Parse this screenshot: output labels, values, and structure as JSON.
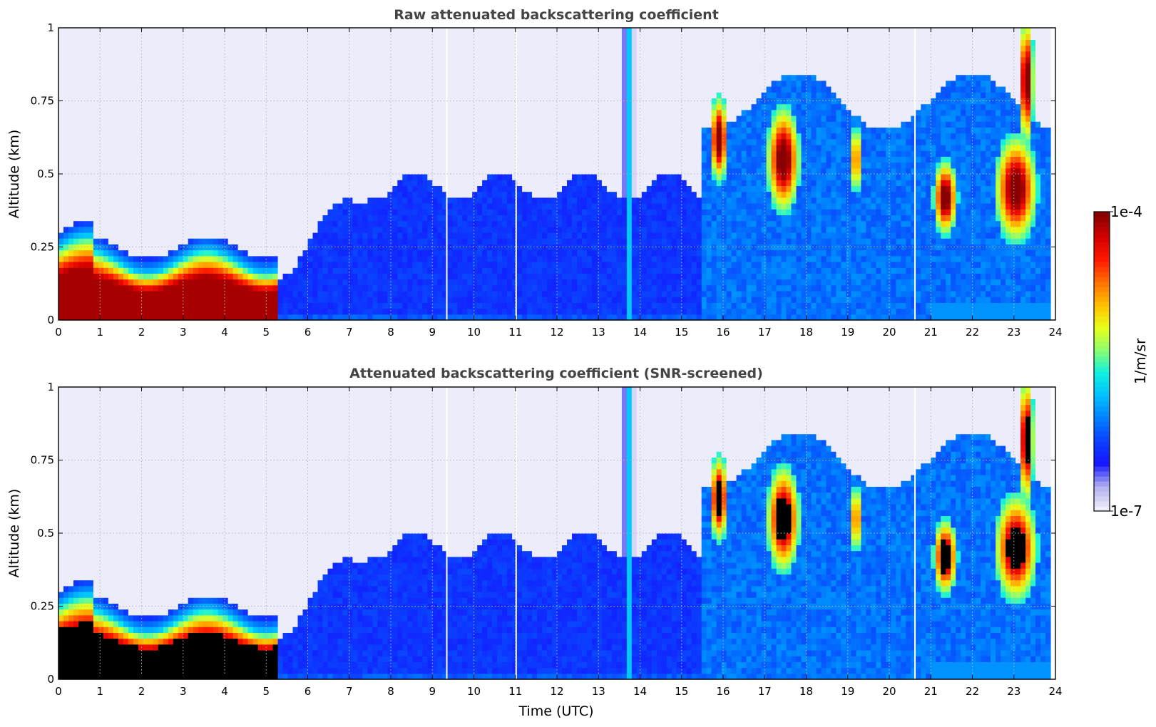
{
  "figure": {
    "time_axis_label": "Time (UTC)",
    "colorbar": {
      "label": "1/m/sr",
      "max_label": "1e-4",
      "min_label": "1e-7",
      "colors": [
        "#ececfa",
        "#b0b0f0",
        "#1515ff",
        "#0b40ff",
        "#0080ff",
        "#00c0ff",
        "#10f0e0",
        "#8cff70",
        "#e8ff18",
        "#ffc000",
        "#ff7000",
        "#ff1800",
        "#d40000",
        "#880000"
      ]
    }
  },
  "chart_data": [
    {
      "type": "heatmap",
      "title": "Raw attenuated backscattering coefficient",
      "xlabel": "",
      "ylabel": "Altitude (km)",
      "xlim": [
        0,
        24
      ],
      "ylim": [
        0,
        1
      ],
      "x_ticks": [
        "0",
        "1",
        "2",
        "3",
        "4",
        "5",
        "6",
        "7",
        "8",
        "9",
        "10",
        "11",
        "12",
        "13",
        "14",
        "15",
        "16",
        "17",
        "18",
        "19",
        "20",
        "21",
        "22",
        "23",
        "24"
      ],
      "y_ticks": [
        "0",
        "0.25",
        "0.5",
        "0.75",
        "1"
      ],
      "grid": true,
      "colormap": "jet",
      "color_scale": "log",
      "value_range": [
        "1e-7",
        "1e-4"
      ],
      "data_end_hour": 23.8
    },
    {
      "type": "heatmap",
      "title": "Attenuated backscattering coefficient (SNR-screened)",
      "xlabel": "Time (UTC)",
      "ylabel": "Altitude (km)",
      "xlim": [
        0,
        24
      ],
      "ylim": [
        0,
        1
      ],
      "x_ticks": [
        "0",
        "1",
        "2",
        "3",
        "4",
        "5",
        "6",
        "7",
        "8",
        "9",
        "10",
        "11",
        "12",
        "13",
        "14",
        "15",
        "16",
        "17",
        "18",
        "19",
        "20",
        "21",
        "22",
        "23",
        "24"
      ],
      "y_ticks": [
        "0",
        "0.25",
        "0.5",
        "0.75",
        "1"
      ],
      "grid": true,
      "colormap": "jet",
      "color_scale": "log",
      "value_range": [
        "1e-7",
        "1e-4"
      ],
      "data_end_hour": 23.8
    }
  ]
}
